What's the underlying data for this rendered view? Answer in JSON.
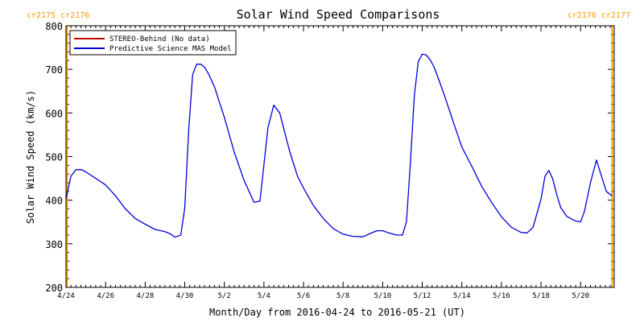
{
  "chart_data": {
    "type": "line",
    "title": "Solar Wind Speed Comparisons",
    "xlabel": "Month/Day from 2016-04-24 to 2016-05-21 (UT)",
    "ylabel": "Solar Wind Speed (km/s)",
    "xlim": [
      0,
      27.7
    ],
    "ylim": [
      200,
      800
    ],
    "x_ticks": [
      {
        "x": 0,
        "label": "4/24"
      },
      {
        "x": 2,
        "label": "4/26"
      },
      {
        "x": 4,
        "label": "4/28"
      },
      {
        "x": 6,
        "label": "4/30"
      },
      {
        "x": 8,
        "label": "5/2"
      },
      {
        "x": 10,
        "label": "5/4"
      },
      {
        "x": 12,
        "label": "5/6"
      },
      {
        "x": 14,
        "label": "5/8"
      },
      {
        "x": 16,
        "label": "5/10"
      },
      {
        "x": 18,
        "label": "5/12"
      },
      {
        "x": 20,
        "label": "5/14"
      },
      {
        "x": 22,
        "label": "5/16"
      },
      {
        "x": 24,
        "label": "5/18"
      },
      {
        "x": 26,
        "label": "5/20"
      }
    ],
    "y_ticks": [
      200,
      300,
      400,
      500,
      600,
      700,
      800
    ],
    "legend": {
      "placement": "top-left",
      "entries": [
        {
          "label": "STEREO-Behind (No data)",
          "color": "#c00000"
        },
        {
          "label": "Predictive Science MAS Model",
          "color": "#0000dd"
        }
      ]
    },
    "carrington_markers": [
      {
        "x": 0.05,
        "label": "cr2175 cr2176",
        "color": "#ff9900",
        "label_side": "left"
      },
      {
        "x": 27.6,
        "label": "cr2176 cr2177",
        "color": "#ff9900",
        "label_side": "right"
      }
    ],
    "series": [
      {
        "name": "Predictive Science MAS Model",
        "color": "#0000dd",
        "x": [
          0.0,
          0.25,
          0.5,
          0.8,
          1.0,
          1.5,
          2.0,
          2.5,
          3.0,
          3.5,
          4.0,
          4.5,
          5.0,
          5.3,
          5.5,
          5.8,
          6.0,
          6.2,
          6.4,
          6.6,
          6.8,
          7.0,
          7.2,
          7.5,
          8.0,
          8.5,
          9.0,
          9.5,
          9.8,
          10.0,
          10.2,
          10.5,
          10.8,
          11.0,
          11.3,
          11.7,
          12.0,
          12.5,
          13.0,
          13.5,
          14.0,
          14.5,
          15.0,
          15.3,
          15.7,
          16.0,
          16.3,
          16.7,
          17.0,
          17.2,
          17.4,
          17.6,
          17.8,
          18.0,
          18.2,
          18.4,
          18.6,
          18.9,
          19.2,
          19.6,
          20.0,
          20.5,
          21.0,
          21.5,
          22.0,
          22.5,
          23.0,
          23.3,
          23.6,
          24.0,
          24.2,
          24.4,
          24.6,
          24.8,
          25.0,
          25.3,
          25.7,
          26.0,
          26.2,
          26.5,
          26.8,
          27.3,
          27.6
        ],
        "values": [
          403,
          455,
          470,
          470,
          465,
          450,
          435,
          410,
          380,
          358,
          345,
          333,
          328,
          322,
          315,
          320,
          382,
          560,
          688,
          712,
          712,
          705,
          690,
          660,
          590,
          510,
          445,
          395,
          398,
          480,
          566,
          618,
          600,
          565,
          512,
          455,
          428,
          388,
          358,
          335,
          322,
          317,
          316,
          322,
          330,
          330,
          325,
          320,
          320,
          350,
          485,
          640,
          718,
          735,
          733,
          722,
          705,
          668,
          630,
          575,
          522,
          478,
          432,
          395,
          362,
          338,
          326,
          325,
          338,
          402,
          455,
          468,
          448,
          412,
          383,
          363,
          353,
          350,
          375,
          440,
          492,
          420,
          410
        ]
      }
    ]
  }
}
